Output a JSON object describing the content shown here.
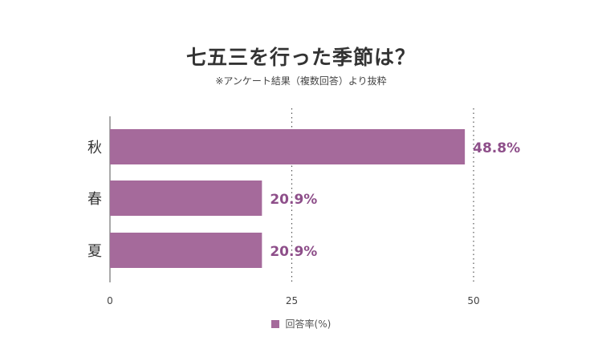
{
  "chart_data": {
    "type": "bar",
    "orientation": "horizontal",
    "title": "七五三を行った季節は？",
    "subtitle": "※アンケート結果（複数回答）より抜粋",
    "categories": [
      "秋",
      "春",
      "夏"
    ],
    "series": [
      {
        "name": "回答率(%)",
        "values": [
          48.8,
          20.9,
          20.9
        ],
        "color": "#a56a9b"
      }
    ],
    "data_labels": [
      "48.8%",
      "20.9%",
      "20.9%"
    ],
    "xlim": [
      0,
      50
    ],
    "x_ticks": [
      "0",
      "25",
      "50"
    ],
    "grid": "vertical-dotted",
    "legend_position": "bottom",
    "label_color": "#8e4f8a"
  }
}
